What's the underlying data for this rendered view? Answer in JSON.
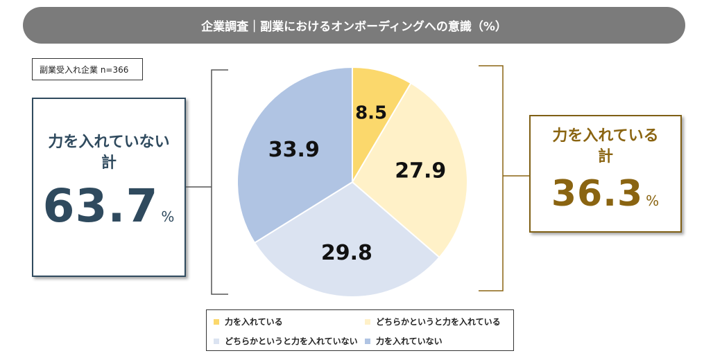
{
  "title": "企業調査｜副業におけるオンボーディングへの意識（%）",
  "sample_label": "副業受入れ企業 n=366",
  "left_total": {
    "label_line1": "力を入れていない",
    "label_line2": "計",
    "value": "63.7",
    "unit": "%"
  },
  "right_total": {
    "label_line1": "力を入れている",
    "label_line2": "計",
    "value": "36.3",
    "unit": "%"
  },
  "colors": {
    "left_accent": "#2f4a5e",
    "right_accent": "#8a6411",
    "slice1": "#fbd86c",
    "slice2": "#fff1c8",
    "slice3": "#dbe3f1",
    "slice4": "#b0c4e3"
  },
  "chart_data": {
    "type": "pie",
    "categories": [
      "力を入れている",
      "どちらかというと力を入れている",
      "どちらかというと力を入れていない",
      "力を入れていない"
    ],
    "values": [
      8.5,
      27.9,
      29.8,
      33.9
    ],
    "labels": [
      "8.5",
      "27.9",
      "29.8",
      "33.9"
    ],
    "colors": [
      "#fbd86c",
      "#fff1c8",
      "#dbe3f1",
      "#b0c4e3"
    ],
    "start": "12 o'clock",
    "direction": "clockwise",
    "legend_position": "bottom"
  }
}
